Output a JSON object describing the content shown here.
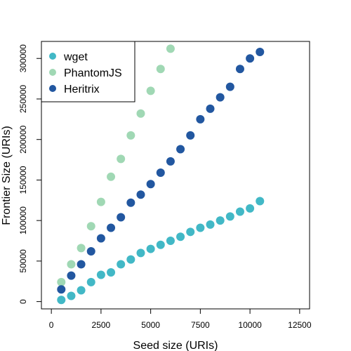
{
  "chart_data": {
    "type": "scatter",
    "xlabel": "Seed size (URIs)",
    "ylabel": "Frontier Size (URIs)",
    "xlim": [
      -500,
      13000
    ],
    "ylim": [
      -9000,
      321000
    ],
    "xticks": [
      0,
      2500,
      5000,
      7500,
      10000,
      12500
    ],
    "yticks": [
      0,
      50000,
      100000,
      150000,
      200000,
      250000,
      300000
    ],
    "xtick_labels": [
      "0",
      "2500",
      "5000",
      "7500",
      "10000",
      "12500"
    ],
    "ytick_labels": [
      "0",
      "50000",
      "100000",
      "150000",
      "200000",
      "250000",
      "300000"
    ],
    "grid": false,
    "legend_position": "top-left",
    "series": [
      {
        "name": "wget",
        "color": "#42b8c6",
        "x": [
          500,
          1000,
          1500,
          2000,
          2500,
          3000,
          3500,
          4000,
          4500,
          5000,
          5500,
          6000,
          6500,
          7000,
          7500,
          8000,
          8500,
          9000,
          9500,
          10000,
          10500
        ],
        "y": [
          2000,
          7000,
          14000,
          24000,
          33000,
          36000,
          46000,
          52000,
          60000,
          65000,
          70000,
          75000,
          80000,
          86000,
          91000,
          95000,
          100000,
          105000,
          111000,
          115000,
          124000
        ]
      },
      {
        "name": "PhantomJS",
        "color": "#a0d8b4",
        "x": [
          500,
          1000,
          1500,
          2000,
          2500,
          3000,
          3500,
          4000,
          4500,
          5000,
          5500,
          6000
        ],
        "y": [
          24000,
          46000,
          66000,
          93000,
          123000,
          154000,
          176000,
          205000,
          232000,
          260000,
          287000,
          312000
        ]
      },
      {
        "name": "Heritrix",
        "color": "#2257a0",
        "x": [
          500,
          1000,
          1500,
          2000,
          2500,
          3000,
          3500,
          4000,
          4500,
          5000,
          5500,
          6000,
          6500,
          7000,
          7500,
          8000,
          8500,
          9000,
          9500,
          10000,
          10500
        ],
        "y": [
          15000,
          32000,
          46000,
          62000,
          78000,
          91000,
          104000,
          122000,
          132000,
          145000,
          159000,
          173000,
          188000,
          205000,
          225000,
          238000,
          252000,
          265000,
          287000,
          300000,
          308000
        ]
      }
    ]
  }
}
